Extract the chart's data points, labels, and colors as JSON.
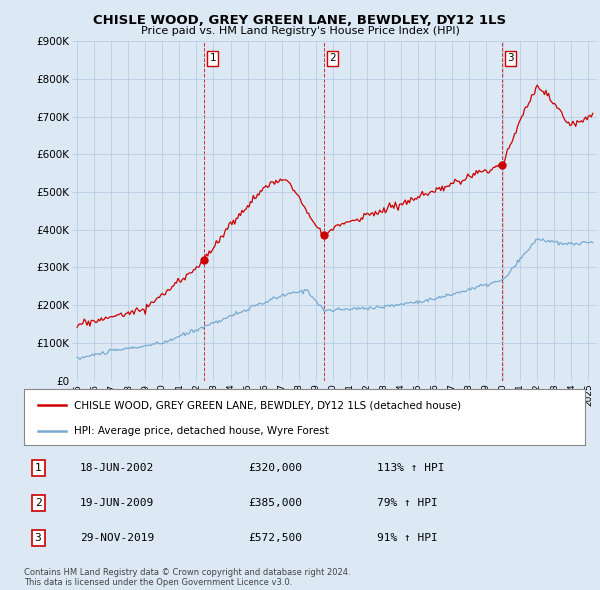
{
  "title": "CHISLE WOOD, GREY GREEN LANE, BEWDLEY, DY12 1LS",
  "subtitle": "Price paid vs. HM Land Registry's House Price Index (HPI)",
  "red_label": "CHISLE WOOD, GREY GREEN LANE, BEWDLEY, DY12 1LS (detached house)",
  "blue_label": "HPI: Average price, detached house, Wyre Forest",
  "sale_markers": [
    {
      "num": 1,
      "date": "18-JUN-2002",
      "price": "£320,000",
      "pct": "113% ↑ HPI",
      "x_year": 2002.46,
      "y_val": 320000
    },
    {
      "num": 2,
      "date": "19-JUN-2009",
      "price": "£385,000",
      "pct": "79% ↑ HPI",
      "x_year": 2009.46,
      "y_val": 385000
    },
    {
      "num": 3,
      "date": "29-NOV-2019",
      "price": "£572,500",
      "pct": "91% ↑ HPI",
      "x_year": 2019.92,
      "y_val": 572500
    }
  ],
  "footer1": "Contains HM Land Registry data © Crown copyright and database right 2024.",
  "footer2": "This data is licensed under the Open Government Licence v3.0.",
  "ylim": [
    0,
    900000
  ],
  "xlim_start": 1994.7,
  "xlim_end": 2025.5,
  "bg_color": "#dce9f5",
  "plot_bg": "#dce9f5",
  "red_color": "#cc0000",
  "blue_color": "#7aaad0",
  "grid_color": "#b0c8e0"
}
